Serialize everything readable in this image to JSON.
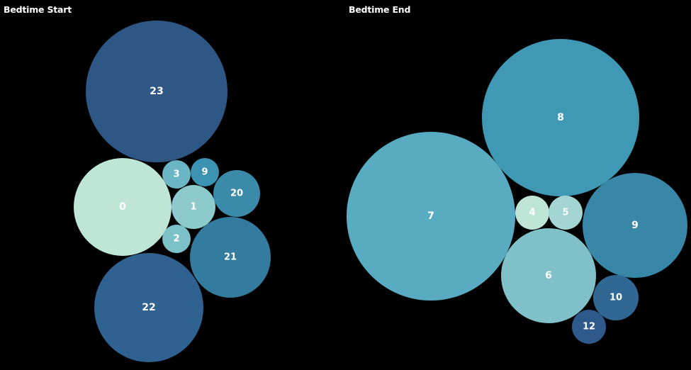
{
  "chart_data": [
    {
      "type": "bubble",
      "title": "Bedtime Start",
      "bubbles": [
        {
          "label": "23",
          "color": "#2f5786"
        },
        {
          "label": "0",
          "color": "#bfe5d7"
        },
        {
          "label": "22",
          "color": "#2f6290"
        },
        {
          "label": "21",
          "color": "#347ba0"
        },
        {
          "label": "20",
          "color": "#3a8aaa"
        },
        {
          "label": "1",
          "color": "#8dcacc"
        },
        {
          "label": "3",
          "color": "#6ab6c4"
        },
        {
          "label": "9",
          "color": "#3c92b1"
        },
        {
          "label": "2",
          "color": "#7cc1c8"
        }
      ]
    },
    {
      "type": "bubble",
      "title": "Bedtime End",
      "bubbles": [
        {
          "label": "7",
          "color": "#58abc1"
        },
        {
          "label": "8",
          "color": "#3f98b4"
        },
        {
          "label": "9",
          "color": "#3886a8"
        },
        {
          "label": "6",
          "color": "#80c0c9"
        },
        {
          "label": "10",
          "color": "#306893"
        },
        {
          "label": "12",
          "color": "#2d5a8a"
        },
        {
          "label": "4",
          "color": "#bfe5d7"
        },
        {
          "label": "5",
          "color": "#a3d6d3"
        }
      ]
    }
  ]
}
